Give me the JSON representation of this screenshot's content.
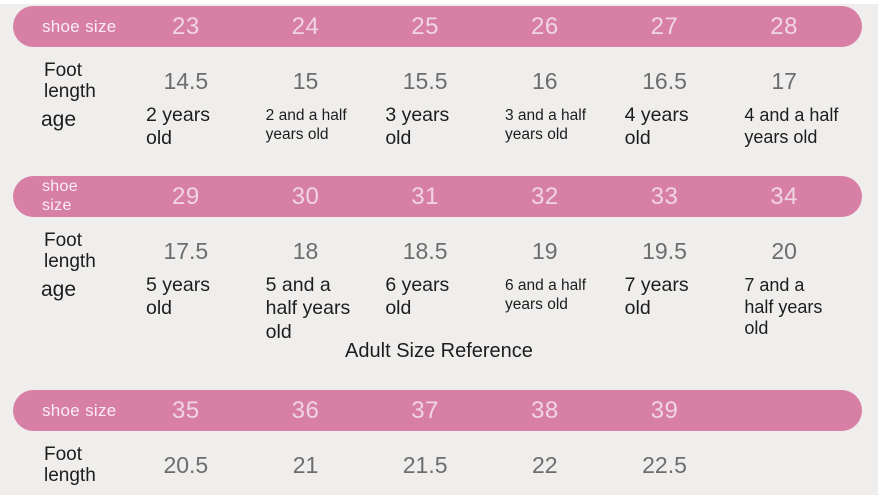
{
  "chart_data": [
    {
      "type": "table",
      "header_label": "shoe size",
      "row_labels": {
        "foot_length": "Foot\nlength",
        "age": "age"
      },
      "shoe_sizes": [
        "23",
        "24",
        "25",
        "26",
        "27",
        "28"
      ],
      "foot_lengths": [
        "14.5",
        "15",
        "15.5",
        "16",
        "16.5",
        "17"
      ],
      "ages": [
        "2 years\nold",
        "2 and a half\nyears old",
        "3 years\nold",
        "3 and a half\nyears old",
        "4 years\nold",
        "4 and a half\nyears old"
      ]
    },
    {
      "type": "table",
      "header_label": "shoe\nsize",
      "row_labels": {
        "foot_length": "Foot\nlength",
        "age": "age"
      },
      "shoe_sizes": [
        "29",
        "30",
        "31",
        "32",
        "33",
        "34"
      ],
      "foot_lengths": [
        "17.5",
        "18",
        "18.5",
        "19",
        "19.5",
        "20"
      ],
      "ages": [
        "5 years\nold",
        "5 and a\nhalf years\nold",
        "6 years\nold",
        "6 and a half\nyears old",
        "7 years\nold",
        "7 and a\nhalf years\nold"
      ]
    },
    {
      "type": "table",
      "title": "Adult Size Reference",
      "header_label": "shoe size",
      "row_labels": {
        "foot_length": "Foot\nlength"
      },
      "shoe_sizes": [
        "35",
        "36",
        "37",
        "38",
        "39"
      ],
      "foot_lengths": [
        "20.5",
        "21",
        "21.5",
        "22",
        "22.5"
      ]
    }
  ],
  "colors": {
    "band_pink": "#d77fa5",
    "band_label_text": "#f9edf3",
    "band_number_text": "#f0d6e1",
    "foot_value_text": "#6d6d6d",
    "body_text": "#1d1d1d",
    "background": "#efeeec",
    "page_white": "#ffffff"
  }
}
